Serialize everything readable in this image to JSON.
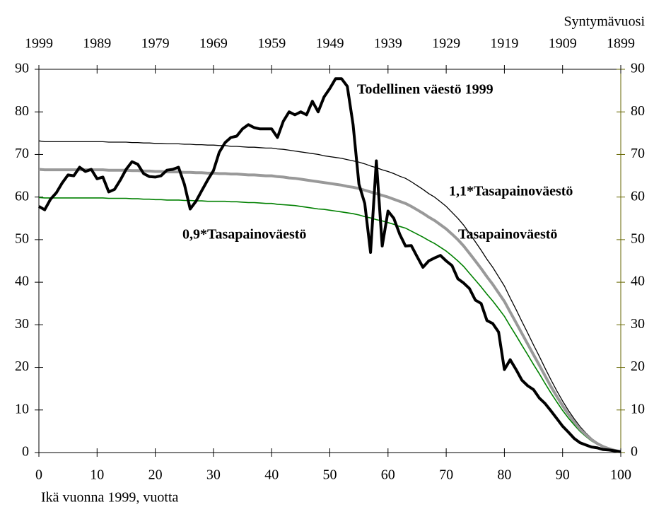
{
  "chart_data": {
    "type": "line",
    "x_label": "Ikä vuonna 1999, vuotta",
    "x2_label": "Syntymävuosi",
    "x": [
      0,
      1,
      2,
      3,
      4,
      5,
      6,
      7,
      8,
      9,
      10,
      11,
      12,
      13,
      14,
      15,
      16,
      17,
      18,
      19,
      20,
      21,
      22,
      23,
      24,
      25,
      26,
      27,
      28,
      29,
      30,
      31,
      32,
      33,
      34,
      35,
      36,
      37,
      38,
      39,
      40,
      41,
      42,
      43,
      44,
      45,
      46,
      47,
      48,
      49,
      50,
      51,
      52,
      53,
      54,
      55,
      56,
      57,
      58,
      59,
      60,
      61,
      62,
      63,
      64,
      65,
      66,
      67,
      68,
      69,
      70,
      71,
      72,
      73,
      74,
      75,
      76,
      77,
      78,
      79,
      80,
      81,
      82,
      83,
      84,
      85,
      86,
      87,
      88,
      89,
      90,
      91,
      92,
      93,
      94,
      95,
      96,
      97,
      98,
      99,
      100
    ],
    "xlim": [
      0,
      100
    ],
    "xticks": [
      0,
      10,
      20,
      30,
      40,
      50,
      60,
      70,
      80,
      90,
      100
    ],
    "x2lim": [
      1999,
      1899
    ],
    "x2ticks": [
      1999,
      1989,
      1979,
      1969,
      1959,
      1949,
      1939,
      1929,
      1919,
      1909,
      1899
    ],
    "ylim": [
      0,
      90
    ],
    "yticks": [
      0,
      10,
      20,
      30,
      40,
      50,
      60,
      70,
      80,
      90
    ],
    "y2lim": [
      0,
      90
    ],
    "y2ticks": [
      0,
      10,
      20,
      30,
      40,
      50,
      60,
      70,
      80,
      90
    ],
    "grid": false,
    "series": [
      {
        "name": "Todellinen väestö 1999",
        "color": "#000000",
        "width": 4,
        "values": [
          57.8,
          57,
          59.5,
          61,
          63.3,
          65.2,
          65,
          67,
          66,
          66.5,
          64.3,
          64.7,
          61.2,
          61.8,
          64,
          66.5,
          68.3,
          67.7,
          65.5,
          64.8,
          64.7,
          65,
          66.3,
          66.5,
          67,
          63,
          57.2,
          59,
          61.5,
          64,
          66.2,
          70.5,
          72.8,
          74,
          74.3,
          76,
          77,
          76.3,
          76,
          76,
          76,
          74,
          77.8,
          80,
          79.3,
          80,
          79.3,
          82.5,
          80,
          83.5,
          85.5,
          87.8,
          87.8,
          86,
          77,
          63,
          58.5,
          47,
          68.5,
          48.5,
          56.7,
          55,
          51.3,
          48.5,
          48.6,
          46,
          43.5,
          45,
          45.7,
          46.3,
          45,
          43.9,
          40.8,
          39.8,
          38.5,
          35.8,
          35,
          31,
          30.3,
          28.3,
          19.5,
          21.8,
          19.5,
          17,
          15.7,
          14.8,
          12.8,
          11.5,
          9.8,
          8,
          6.2,
          4.8,
          3.3,
          2.3,
          1.8,
          1.3,
          1.1,
          0.7,
          0.6,
          0.4,
          0.2
        ]
      },
      {
        "name": "1,1*Tasapainoväestö",
        "color": "#000000",
        "width": 1.3,
        "values": [
          73.2,
          73.0,
          73.0,
          73.0,
          73.0,
          73.0,
          73.0,
          73.0,
          73.0,
          73.0,
          73.0,
          73.0,
          72.9,
          72.9,
          72.9,
          72.9,
          72.8,
          72.8,
          72.7,
          72.7,
          72.6,
          72.6,
          72.5,
          72.5,
          72.5,
          72.4,
          72.4,
          72.3,
          72.3,
          72.2,
          72.2,
          72.1,
          72.1,
          71.9,
          71.9,
          71.8,
          71.7,
          71.7,
          71.6,
          71.5,
          71.5,
          71.3,
          71.2,
          71.0,
          70.8,
          70.6,
          70.4,
          70.2,
          70.0,
          69.7,
          69.5,
          69.3,
          69.1,
          68.8,
          68.5,
          68.2,
          67.8,
          67.3,
          66.9,
          66.4,
          66.0,
          65.5,
          64.9,
          64.4,
          63.6,
          62.7,
          61.8,
          60.8,
          60.0,
          58.9,
          57.8,
          56.4,
          55.0,
          53.4,
          51.5,
          49.5,
          47.5,
          45.4,
          43.5,
          41.3,
          39.1,
          36.3,
          33.6,
          30.8,
          28.1,
          25.3,
          22.6,
          19.8,
          17.1,
          14.5,
          12.1,
          9.9,
          7.9,
          6.1,
          4.6,
          3.3,
          2.3,
          1.5,
          1.0,
          0.6,
          0.2
        ]
      },
      {
        "name": "Tasapainoväestö",
        "color": "#999999",
        "width": 4,
        "values": [
          66.5,
          66.4,
          66.4,
          66.4,
          66.4,
          66.4,
          66.4,
          66.4,
          66.4,
          66.4,
          66.4,
          66.4,
          66.3,
          66.3,
          66.3,
          66.3,
          66.2,
          66.2,
          66.1,
          66.1,
          66.0,
          66.0,
          65.9,
          65.9,
          65.9,
          65.8,
          65.8,
          65.7,
          65.7,
          65.6,
          65.6,
          65.5,
          65.5,
          65.4,
          65.4,
          65.3,
          65.2,
          65.2,
          65.1,
          65.0,
          65.0,
          64.8,
          64.7,
          64.5,
          64.4,
          64.2,
          64.0,
          63.8,
          63.6,
          63.4,
          63.2,
          63.0,
          62.8,
          62.5,
          62.3,
          62.0,
          61.6,
          61.2,
          60.8,
          60.4,
          60.0,
          59.5,
          59.0,
          58.5,
          57.8,
          57.0,
          56.2,
          55.3,
          54.5,
          53.5,
          52.5,
          51.3,
          50.0,
          48.5,
          46.8,
          45.0,
          43.2,
          41.3,
          39.5,
          37.5,
          35.5,
          33.0,
          30.5,
          28.0,
          25.5,
          23.0,
          20.5,
          18.0,
          15.5,
          13.2,
          11.0,
          9.0,
          7.2,
          5.5,
          4.2,
          3.0,
          2.1,
          1.4,
          0.9,
          0.5,
          0.2
        ]
      },
      {
        "name": "0,9*Tasapainoväestö",
        "color": "#008000",
        "width": 1.6,
        "values": [
          59.9,
          59.8,
          59.8,
          59.8,
          59.8,
          59.8,
          59.8,
          59.8,
          59.8,
          59.8,
          59.8,
          59.8,
          59.7,
          59.7,
          59.7,
          59.7,
          59.6,
          59.6,
          59.5,
          59.5,
          59.4,
          59.4,
          59.3,
          59.3,
          59.3,
          59.2,
          59.2,
          59.1,
          59.1,
          59.0,
          59.0,
          59.0,
          59.0,
          58.9,
          58.9,
          58.8,
          58.7,
          58.7,
          58.6,
          58.5,
          58.5,
          58.3,
          58.2,
          58.1,
          58.0,
          57.8,
          57.6,
          57.4,
          57.2,
          57.1,
          56.9,
          56.7,
          56.5,
          56.3,
          56.1,
          55.8,
          55.4,
          55.1,
          54.7,
          54.4,
          54.0,
          53.6,
          53.1,
          52.7,
          52.0,
          51.3,
          50.6,
          49.8,
          49.1,
          48.2,
          47.3,
          46.2,
          45.0,
          43.7,
          42.1,
          40.5,
          38.9,
          37.2,
          35.6,
          33.8,
          32.0,
          29.7,
          27.5,
          25.2,
          23.0,
          20.7,
          18.5,
          16.2,
          14.0,
          11.9,
          9.9,
          8.1,
          6.5,
          5.0,
          3.8,
          2.7,
          1.9,
          1.3,
          0.8,
          0.5,
          0.2
        ]
      }
    ]
  }
}
